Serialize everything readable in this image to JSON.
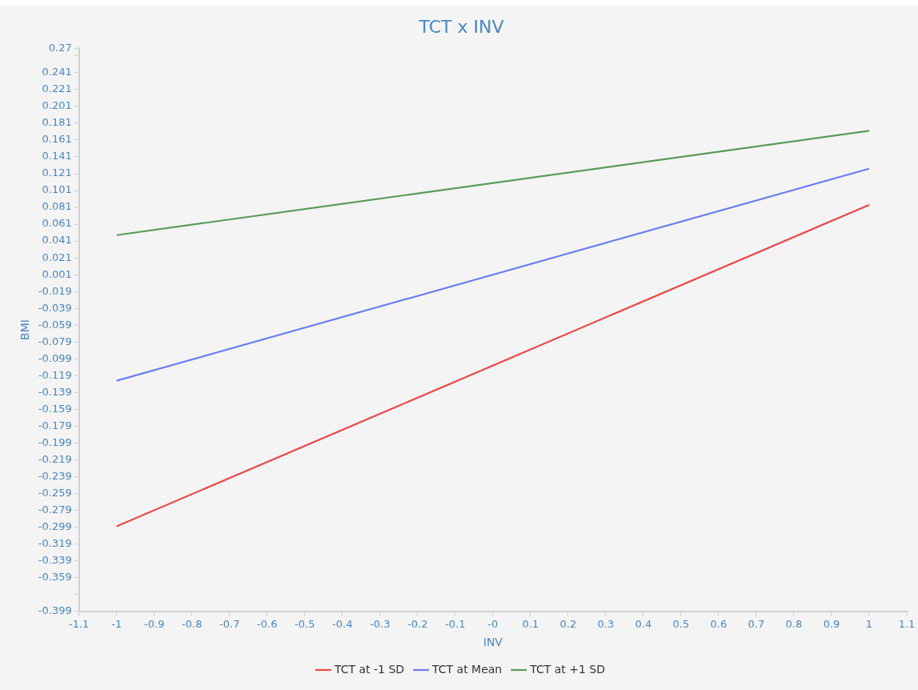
{
  "chart_data": {
    "type": "line",
    "title": "TCT x INV",
    "xlabel": "INV",
    "ylabel": "BMI",
    "x": [
      -1,
      1
    ],
    "series": [
      {
        "name": "TCT at -1 SD",
        "color": "#e84a4a",
        "values": [
          -0.298,
          0.084
        ]
      },
      {
        "name": "TCT at Mean",
        "color": "#6b7ff0",
        "values": [
          -0.125,
          0.127
        ]
      },
      {
        "name": "TCT at +1 SD",
        "color": "#5a9a5a",
        "values": [
          0.048,
          0.172
        ]
      }
    ],
    "xlim": [
      -1.1,
      1.1
    ],
    "xticks": [
      -1.1,
      -1,
      -0.9,
      -0.8,
      -0.7,
      -0.6,
      -0.5,
      -0.4,
      -0.3,
      -0.2,
      -0.1,
      {
        "value": 0,
        "label": "-0"
      },
      0.1,
      0.2,
      0.3,
      0.4,
      0.5,
      0.6,
      0.7,
      0.8,
      0.9,
      1,
      1.1
    ],
    "ylim": [
      -0.399,
      0.27
    ],
    "yticks": [
      -0.399,
      {
        "value": -0.379,
        "label": null
      },
      -0.359,
      -0.339,
      -0.319,
      -0.299,
      -0.279,
      -0.259,
      -0.239,
      -0.219,
      -0.199,
      -0.179,
      -0.159,
      -0.139,
      -0.119,
      -0.099,
      -0.079,
      -0.059,
      -0.039,
      -0.019,
      0.001,
      0.021,
      0.041,
      0.061,
      0.081,
      0.101,
      0.121,
      0.141,
      0.161,
      0.181,
      0.201,
      0.221,
      0.241,
      {
        "value": 0.261,
        "label": null
      },
      0.27
    ],
    "grid": false,
    "legend": "bottom",
    "marker": "none",
    "line_style": "solid"
  }
}
